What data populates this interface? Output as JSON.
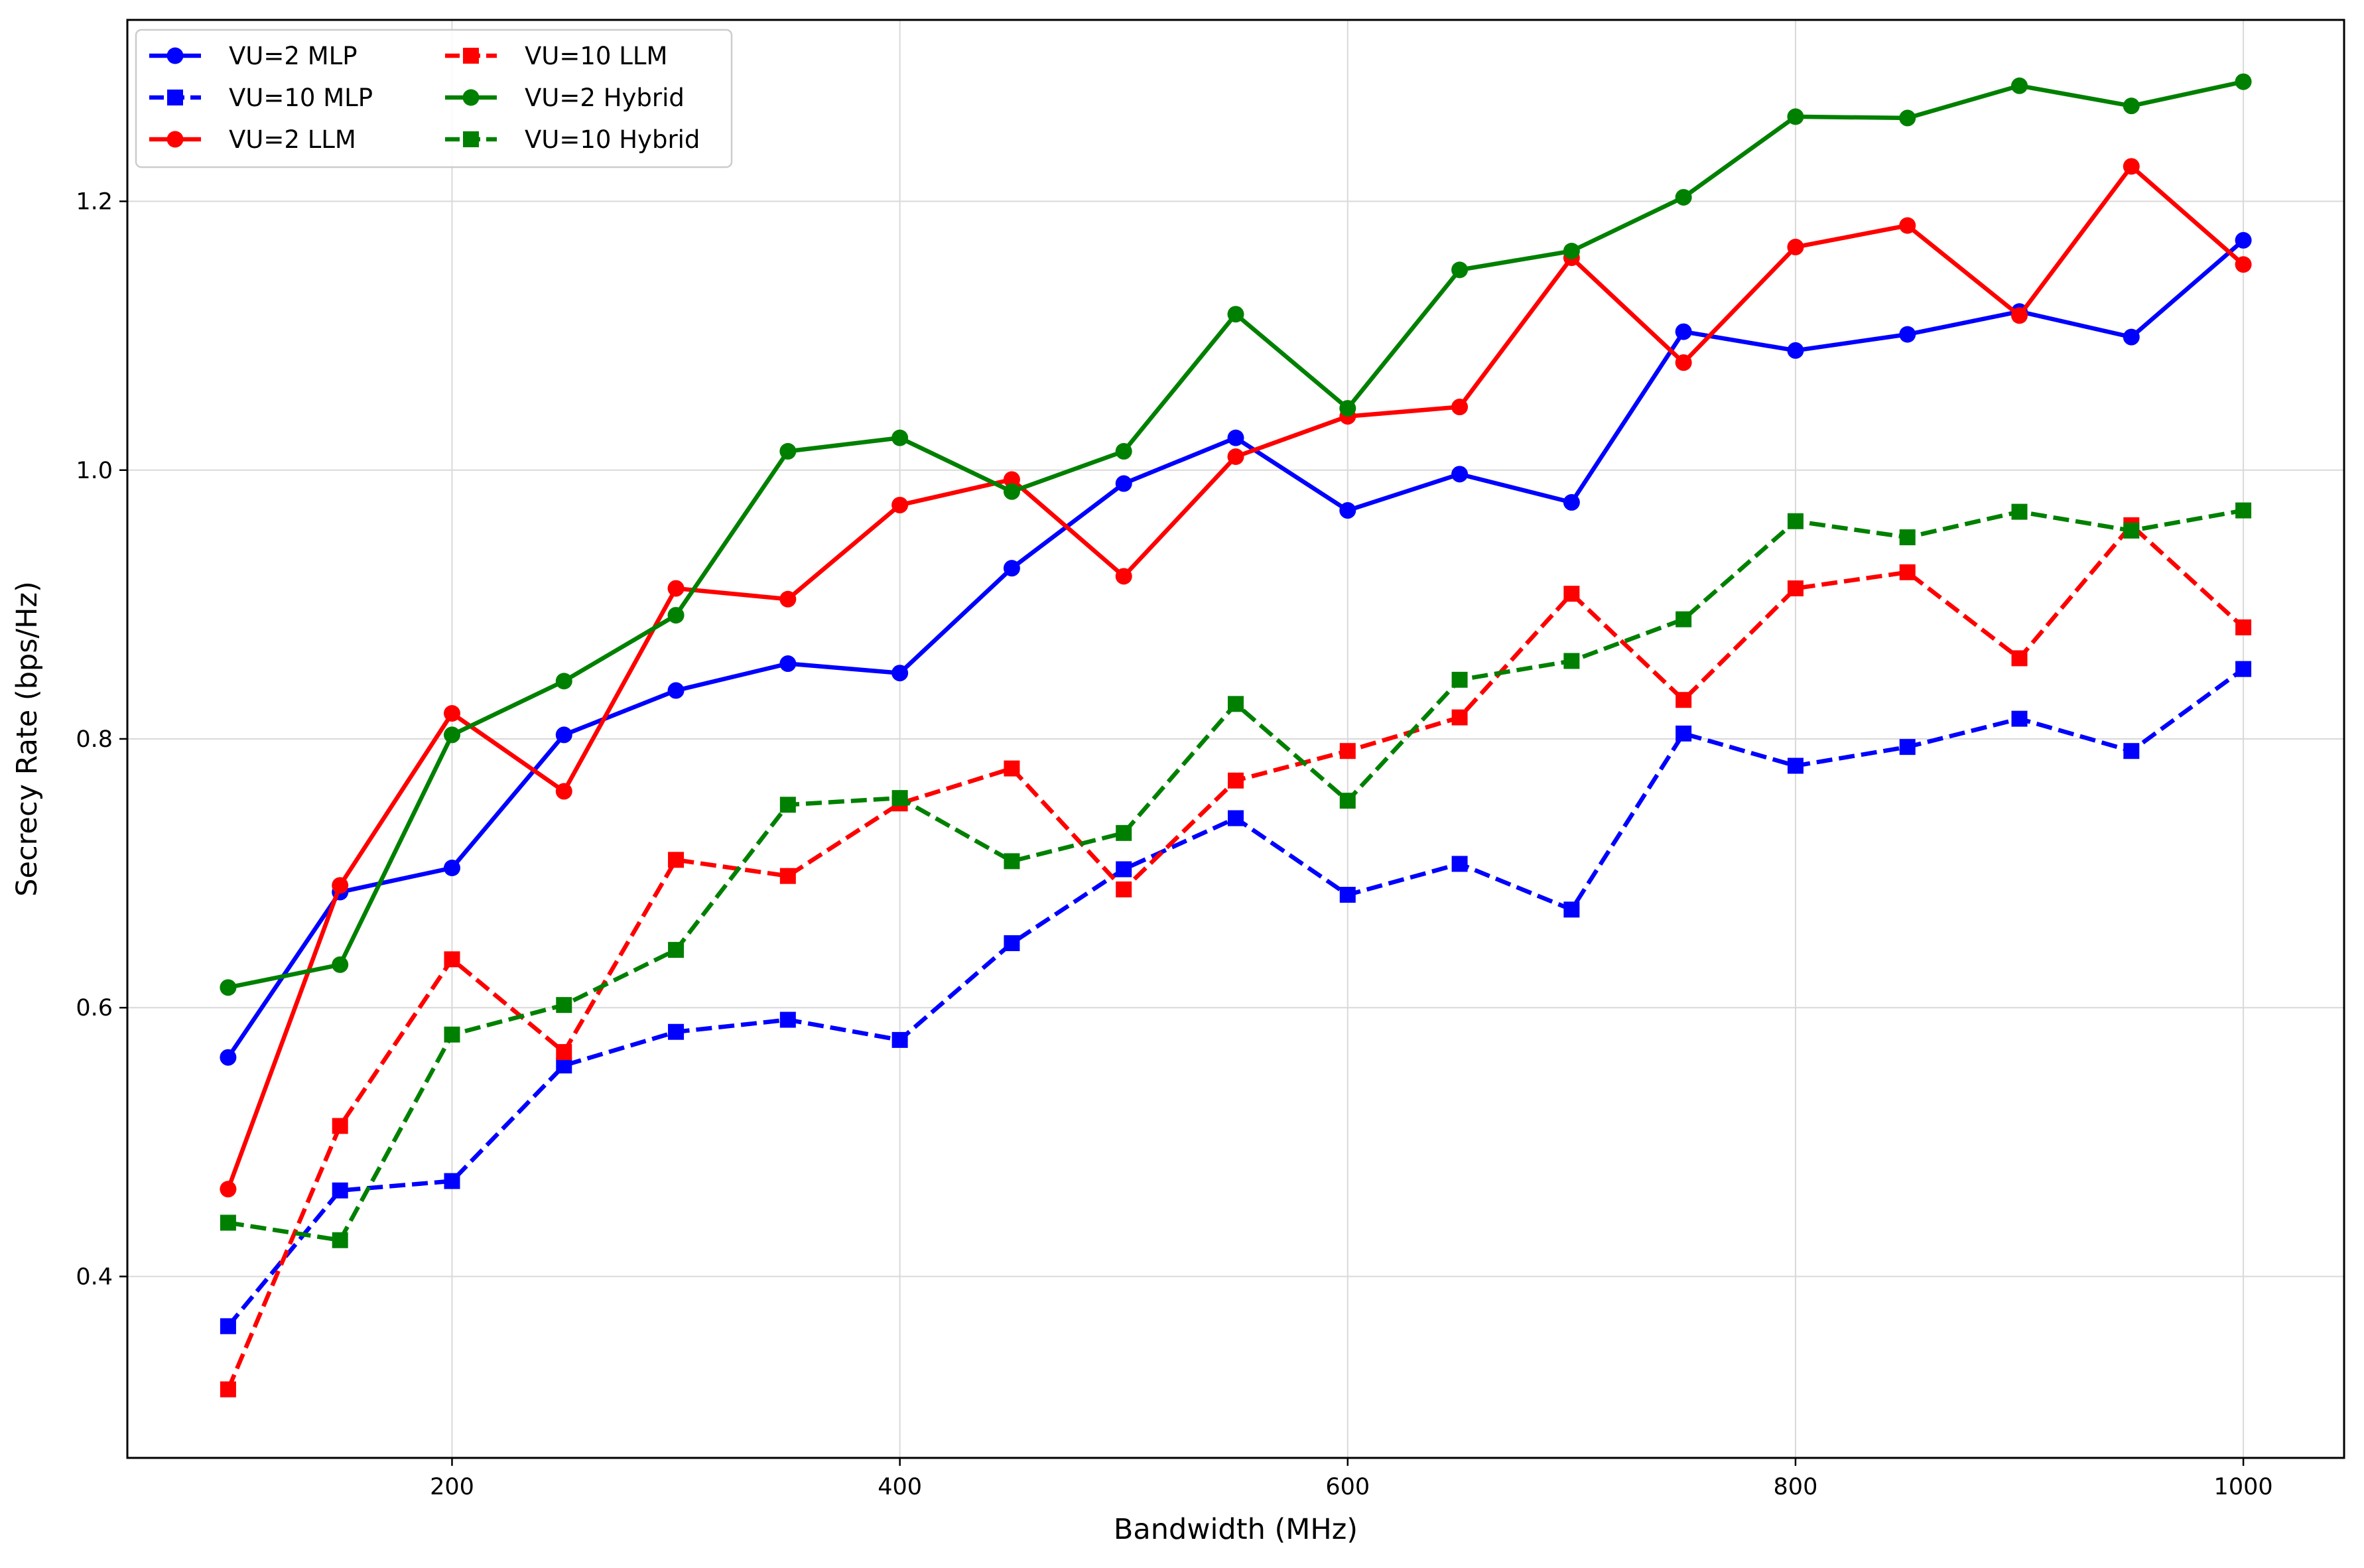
{
  "chart_data": {
    "type": "line",
    "title": "",
    "xlabel": "Bandwidth (MHz)",
    "ylabel": "Secrecy Rate (bps/Hz)",
    "xlim": [
      55,
      1045
    ],
    "ylim": [
      0.265,
      1.335
    ],
    "xticks": [
      200,
      400,
      600,
      800,
      1000
    ],
    "yticks": [
      0.4,
      0.6,
      0.8,
      1.0,
      1.2
    ],
    "xtick_labels": [
      "200",
      "400",
      "600",
      "800",
      "1000"
    ],
    "ytick_labels": [
      "0.4",
      "0.6",
      "0.8",
      "1.0",
      "1.2"
    ],
    "grid": true,
    "legend_position": "top-left",
    "x": [
      100,
      150,
      200,
      250,
      300,
      350,
      400,
      450,
      500,
      550,
      600,
      650,
      700,
      750,
      800,
      850,
      900,
      950,
      1000
    ],
    "series": [
      {
        "name": "VU=2 MLP",
        "color": "#0000ff",
        "dash": "solid",
        "marker": "circle",
        "values": [
          0.563,
          0.686,
          0.704,
          0.803,
          0.836,
          0.856,
          0.849,
          0.927,
          0.99,
          1.024,
          0.97,
          0.997,
          0.976,
          1.103,
          1.089,
          1.101,
          1.118,
          1.099,
          1.171
        ]
      },
      {
        "name": "VU=10 MLP",
        "color": "#0000ff",
        "dash": "dashed",
        "marker": "square",
        "values": [
          0.363,
          0.464,
          0.471,
          0.557,
          0.582,
          0.591,
          0.576,
          0.648,
          0.703,
          0.741,
          0.684,
          0.707,
          0.673,
          0.804,
          0.78,
          0.794,
          0.815,
          0.791,
          0.852
        ]
      },
      {
        "name": "VU=2 LLM",
        "color": "#ff0000",
        "dash": "solid",
        "marker": "circle",
        "values": [
          0.465,
          0.691,
          0.819,
          0.761,
          0.912,
          0.904,
          0.974,
          0.993,
          0.921,
          1.01,
          1.04,
          1.047,
          1.158,
          1.08,
          1.166,
          1.182,
          1.115,
          1.226,
          1.153
        ]
      },
      {
        "name": "VU=10 LLM",
        "color": "#ff0000",
        "dash": "dashed",
        "marker": "square",
        "values": [
          0.316,
          0.512,
          0.636,
          0.567,
          0.71,
          0.698,
          0.752,
          0.778,
          0.688,
          0.769,
          0.791,
          0.816,
          0.908,
          0.829,
          0.912,
          0.924,
          0.86,
          0.959,
          0.883
        ]
      },
      {
        "name": "VU=2 Hybrid",
        "color": "#008000",
        "dash": "solid",
        "marker": "circle",
        "values": [
          0.615,
          0.632,
          0.803,
          0.843,
          0.892,
          1.014,
          1.024,
          0.984,
          1.014,
          1.116,
          1.046,
          1.149,
          1.163,
          1.203,
          1.263,
          1.262,
          1.286,
          1.271,
          1.289
        ]
      },
      {
        "name": "VU=10 Hybrid",
        "color": "#008000",
        "dash": "dashed",
        "marker": "square",
        "values": [
          0.44,
          0.427,
          0.58,
          0.602,
          0.643,
          0.751,
          0.756,
          0.709,
          0.73,
          0.826,
          0.754,
          0.844,
          0.858,
          0.889,
          0.962,
          0.95,
          0.969,
          0.955,
          0.97
        ]
      }
    ]
  }
}
